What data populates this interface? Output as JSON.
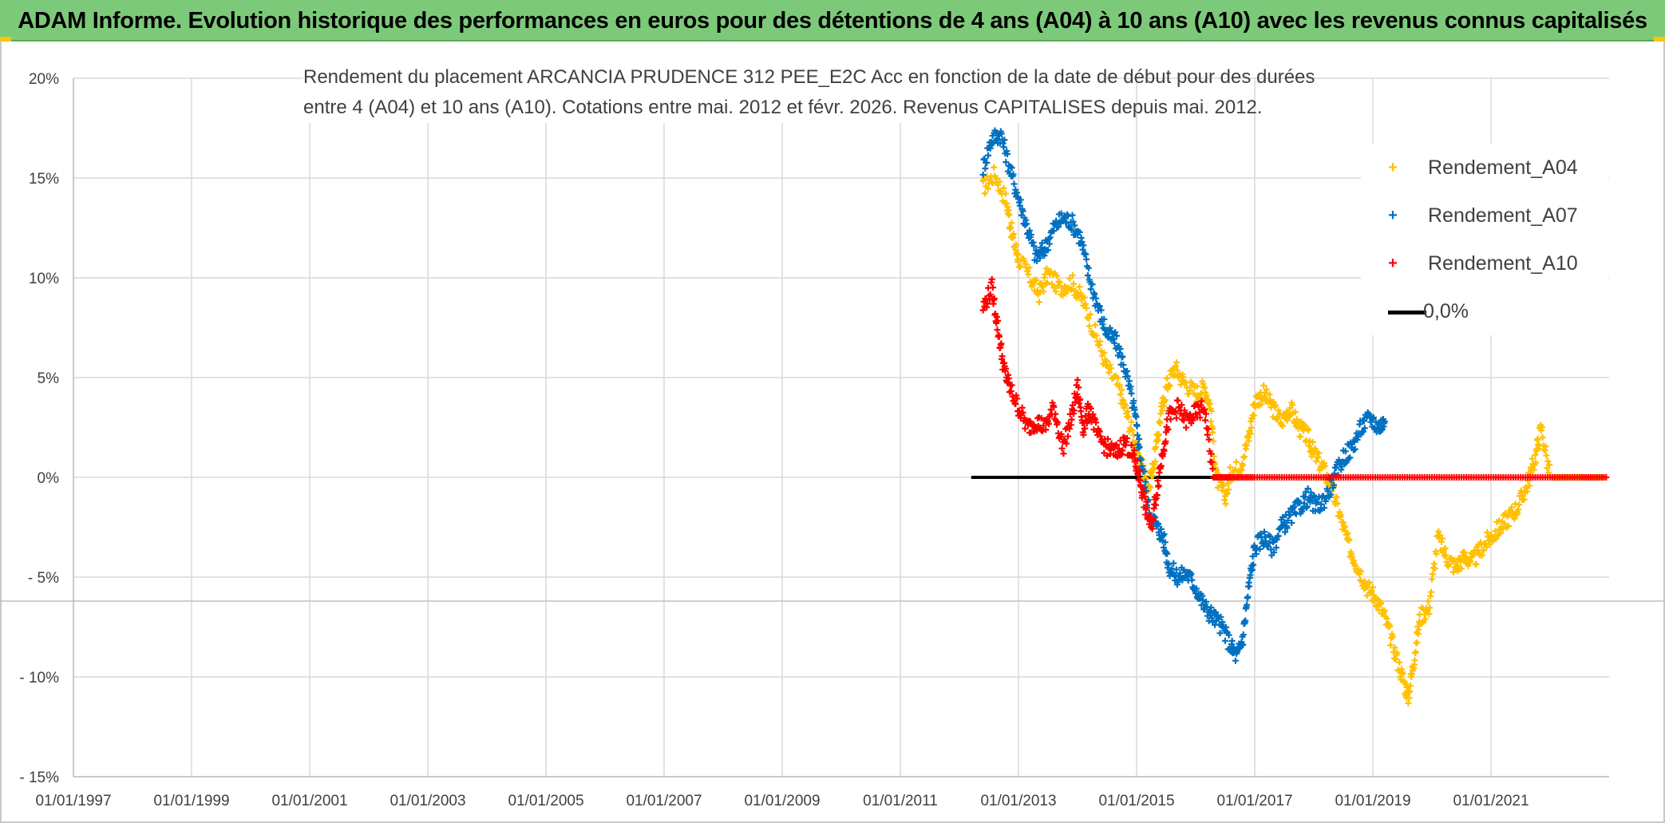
{
  "banner": {
    "title": "ADAM Informe. Evolution historique des performances en euros pour des détentions de 4 ans (A04) à 10 ans (A10) avec les revenus connus capitalisés",
    "background": "#7dc97a"
  },
  "chart_data": {
    "type": "scatter",
    "title_line1": "Rendement du placement ARCANCIA PRUDENCE 312 PEE_E2C Acc en fonction de la date de début pour des durées",
    "title_line2": "entre 4 (A04) et 10 ans (A10). Cotations entre mai. 2012 et févr. 2026. Revenus CAPITALISES depuis mai. 2012.",
    "xlabel": "",
    "ylabel": "",
    "xlim": [
      1997.0,
      2023.0
    ],
    "ylim": [
      -15,
      20
    ],
    "grid": true,
    "legend_position": "top-right",
    "x_tick_labels": [
      "01/01/1997",
      "01/01/1999",
      "01/01/2001",
      "01/01/2003",
      "01/01/2005",
      "01/01/2007",
      "01/01/2009",
      "01/01/2011",
      "01/01/2013",
      "01/01/2015",
      "01/01/2017",
      "01/01/2019",
      "01/01/2021"
    ],
    "x_ticks": [
      1997,
      1999,
      2001,
      2003,
      2005,
      2007,
      2009,
      2011,
      2013,
      2015,
      2017,
      2019,
      2021
    ],
    "y_tick_labels": [
      "20%",
      "15%",
      "10%",
      "5%",
      "0%",
      "- 5%",
      "- 10%",
      "- 15%"
    ],
    "y_ticks": [
      20,
      15,
      10,
      5,
      0,
      -5,
      -10,
      -15
    ],
    "series": [
      {
        "name": "Rendement_A04",
        "color": "#ffc000",
        "marker": "+",
        "points": [
          [
            2012.4,
            14.5
          ],
          [
            2012.6,
            15.2
          ],
          [
            2012.8,
            13.8
          ],
          [
            2012.9,
            12.0
          ],
          [
            2013.0,
            11.0
          ],
          [
            2013.2,
            10.0
          ],
          [
            2013.35,
            9.2
          ],
          [
            2013.5,
            10.2
          ],
          [
            2013.7,
            9.5
          ],
          [
            2013.9,
            9.8
          ],
          [
            2014.1,
            8.8
          ],
          [
            2014.3,
            7.2
          ],
          [
            2014.5,
            5.5
          ],
          [
            2014.7,
            4.5
          ],
          [
            2014.85,
            3.0
          ],
          [
            2015.0,
            1.5
          ],
          [
            2015.1,
            0.5
          ],
          [
            2015.2,
            -0.5
          ],
          [
            2015.3,
            0.8
          ],
          [
            2015.4,
            3.0
          ],
          [
            2015.5,
            4.5
          ],
          [
            2015.65,
            5.5
          ],
          [
            2015.8,
            4.8
          ],
          [
            2016.0,
            4.2
          ],
          [
            2016.15,
            4.5
          ],
          [
            2016.25,
            3.5
          ],
          [
            2016.35,
            0.0
          ],
          [
            2016.5,
            -1.0
          ],
          [
            2016.6,
            0.3
          ],
          [
            2016.75,
            0.5
          ],
          [
            2016.9,
            2.0
          ],
          [
            2017.0,
            3.8
          ],
          [
            2017.15,
            4.2
          ],
          [
            2017.3,
            3.5
          ],
          [
            2017.45,
            2.8
          ],
          [
            2017.6,
            3.5
          ],
          [
            2017.75,
            2.5
          ],
          [
            2017.9,
            2.0
          ],
          [
            2018.0,
            1.2
          ],
          [
            2018.15,
            0.5
          ],
          [
            2018.3,
            -0.5
          ],
          [
            2018.45,
            -2.0
          ],
          [
            2018.6,
            -3.5
          ],
          [
            2018.75,
            -4.5
          ],
          [
            2018.9,
            -5.5
          ],
          [
            2019.05,
            -6.0
          ],
          [
            2019.2,
            -7.0
          ],
          [
            2019.35,
            -8.5
          ],
          [
            2019.5,
            -10.0
          ],
          [
            2019.6,
            -11.0
          ],
          [
            2019.7,
            -9.0
          ],
          [
            2019.8,
            -7.0
          ],
          [
            2019.95,
            -6.5
          ],
          [
            2020.1,
            -3.0
          ],
          [
            2020.25,
            -4.0
          ],
          [
            2020.4,
            -4.5
          ],
          [
            2020.55,
            -4.0
          ],
          [
            2020.7,
            -4.2
          ],
          [
            2020.85,
            -3.5
          ],
          [
            2021.0,
            -3.0
          ],
          [
            2021.15,
            -2.5
          ],
          [
            2021.3,
            -2.0
          ],
          [
            2021.45,
            -1.5
          ],
          [
            2021.6,
            -0.5
          ],
          [
            2021.75,
            1.0
          ],
          [
            2021.85,
            2.5
          ],
          [
            2022.0,
            0.0
          ],
          [
            2022.3,
            0.0
          ],
          [
            2022.6,
            0.0
          ],
          [
            2022.9,
            0.0
          ]
        ]
      },
      {
        "name": "Rendement_A07",
        "color": "#0070c0",
        "marker": "+",
        "points": [
          [
            2012.4,
            15.5
          ],
          [
            2012.55,
            17.0
          ],
          [
            2012.7,
            17.2
          ],
          [
            2012.85,
            15.5
          ],
          [
            2013.0,
            14.0
          ],
          [
            2013.15,
            12.5
          ],
          [
            2013.3,
            11.0
          ],
          [
            2013.45,
            11.5
          ],
          [
            2013.6,
            12.5
          ],
          [
            2013.75,
            13.0
          ],
          [
            2013.9,
            12.8
          ],
          [
            2014.05,
            12.0
          ],
          [
            2014.2,
            10.0
          ],
          [
            2014.35,
            8.5
          ],
          [
            2014.5,
            7.2
          ],
          [
            2014.65,
            6.8
          ],
          [
            2014.8,
            5.5
          ],
          [
            2014.95,
            3.5
          ],
          [
            2015.05,
            1.5
          ],
          [
            2015.2,
            -1.5
          ],
          [
            2015.35,
            -2.5
          ],
          [
            2015.45,
            -3.0
          ],
          [
            2015.55,
            -4.5
          ],
          [
            2015.7,
            -5.0
          ],
          [
            2015.85,
            -4.8
          ],
          [
            2016.0,
            -5.5
          ],
          [
            2016.15,
            -6.5
          ],
          [
            2016.3,
            -7.0
          ],
          [
            2016.45,
            -7.5
          ],
          [
            2016.6,
            -8.5
          ],
          [
            2016.7,
            -9.0
          ],
          [
            2016.8,
            -8.0
          ],
          [
            2016.9,
            -5.5
          ],
          [
            2017.0,
            -3.5
          ],
          [
            2017.15,
            -3.0
          ],
          [
            2017.3,
            -3.5
          ],
          [
            2017.45,
            -2.5
          ],
          [
            2017.6,
            -2.0
          ],
          [
            2017.75,
            -1.5
          ],
          [
            2017.9,
            -1.0
          ],
          [
            2018.05,
            -1.5
          ],
          [
            2018.2,
            -1.0
          ],
          [
            2018.35,
            0.0
          ],
          [
            2018.5,
            1.0
          ],
          [
            2018.65,
            1.5
          ],
          [
            2018.8,
            2.5
          ],
          [
            2018.95,
            3.0
          ],
          [
            2019.1,
            2.5
          ],
          [
            2019.2,
            2.8
          ]
        ]
      },
      {
        "name": "Rendement_A10",
        "color": "#ff0000",
        "marker": "+",
        "points": [
          [
            2012.4,
            8.5
          ],
          [
            2012.55,
            9.5
          ],
          [
            2012.65,
            7.5
          ],
          [
            2012.75,
            5.5
          ],
          [
            2012.85,
            4.5
          ],
          [
            2013.0,
            3.5
          ],
          [
            2013.15,
            2.5
          ],
          [
            2013.3,
            2.8
          ],
          [
            2013.45,
            2.5
          ],
          [
            2013.6,
            3.5
          ],
          [
            2013.75,
            1.5
          ],
          [
            2013.9,
            3.0
          ],
          [
            2014.0,
            4.5
          ],
          [
            2014.1,
            2.5
          ],
          [
            2014.2,
            3.5
          ],
          [
            2014.35,
            2.0
          ],
          [
            2014.5,
            1.5
          ],
          [
            2014.65,
            1.2
          ],
          [
            2014.8,
            1.8
          ],
          [
            2014.95,
            1.0
          ],
          [
            2015.05,
            0.0
          ],
          [
            2015.15,
            -1.5
          ],
          [
            2015.25,
            -2.5
          ],
          [
            2015.35,
            -0.5
          ],
          [
            2015.45,
            1.5
          ],
          [
            2015.55,
            3.0
          ],
          [
            2015.7,
            3.5
          ],
          [
            2015.85,
            2.8
          ],
          [
            2016.0,
            3.2
          ],
          [
            2016.15,
            3.5
          ],
          [
            2016.3,
            0.0
          ],
          [
            2016.6,
            0.0
          ],
          [
            2017.0,
            0.0
          ],
          [
            2017.5,
            0.0
          ],
          [
            2018.0,
            0.0
          ],
          [
            2018.5,
            0.0
          ],
          [
            2019.0,
            0.0
          ],
          [
            2019.5,
            0.0
          ],
          [
            2020.0,
            0.0
          ],
          [
            2020.5,
            0.0
          ],
          [
            2021.0,
            0.0
          ],
          [
            2021.5,
            0.0
          ],
          [
            2022.0,
            0.0
          ],
          [
            2022.5,
            0.0
          ],
          [
            2022.95,
            0.0
          ]
        ]
      }
    ],
    "reference_line": {
      "name": "0,0%",
      "color": "#000000",
      "x": [
        2012.2,
        2016.3
      ],
      "y": 0
    }
  },
  "legend": {
    "items": [
      {
        "label": "Rendement_A04",
        "color": "#ffc000"
      },
      {
        "label": "Rendement_A07",
        "color": "#0070c0"
      },
      {
        "label": "Rendement_A10",
        "color": "#ff0000"
      },
      {
        "label": "0,0%",
        "color": "#000000"
      }
    ]
  }
}
